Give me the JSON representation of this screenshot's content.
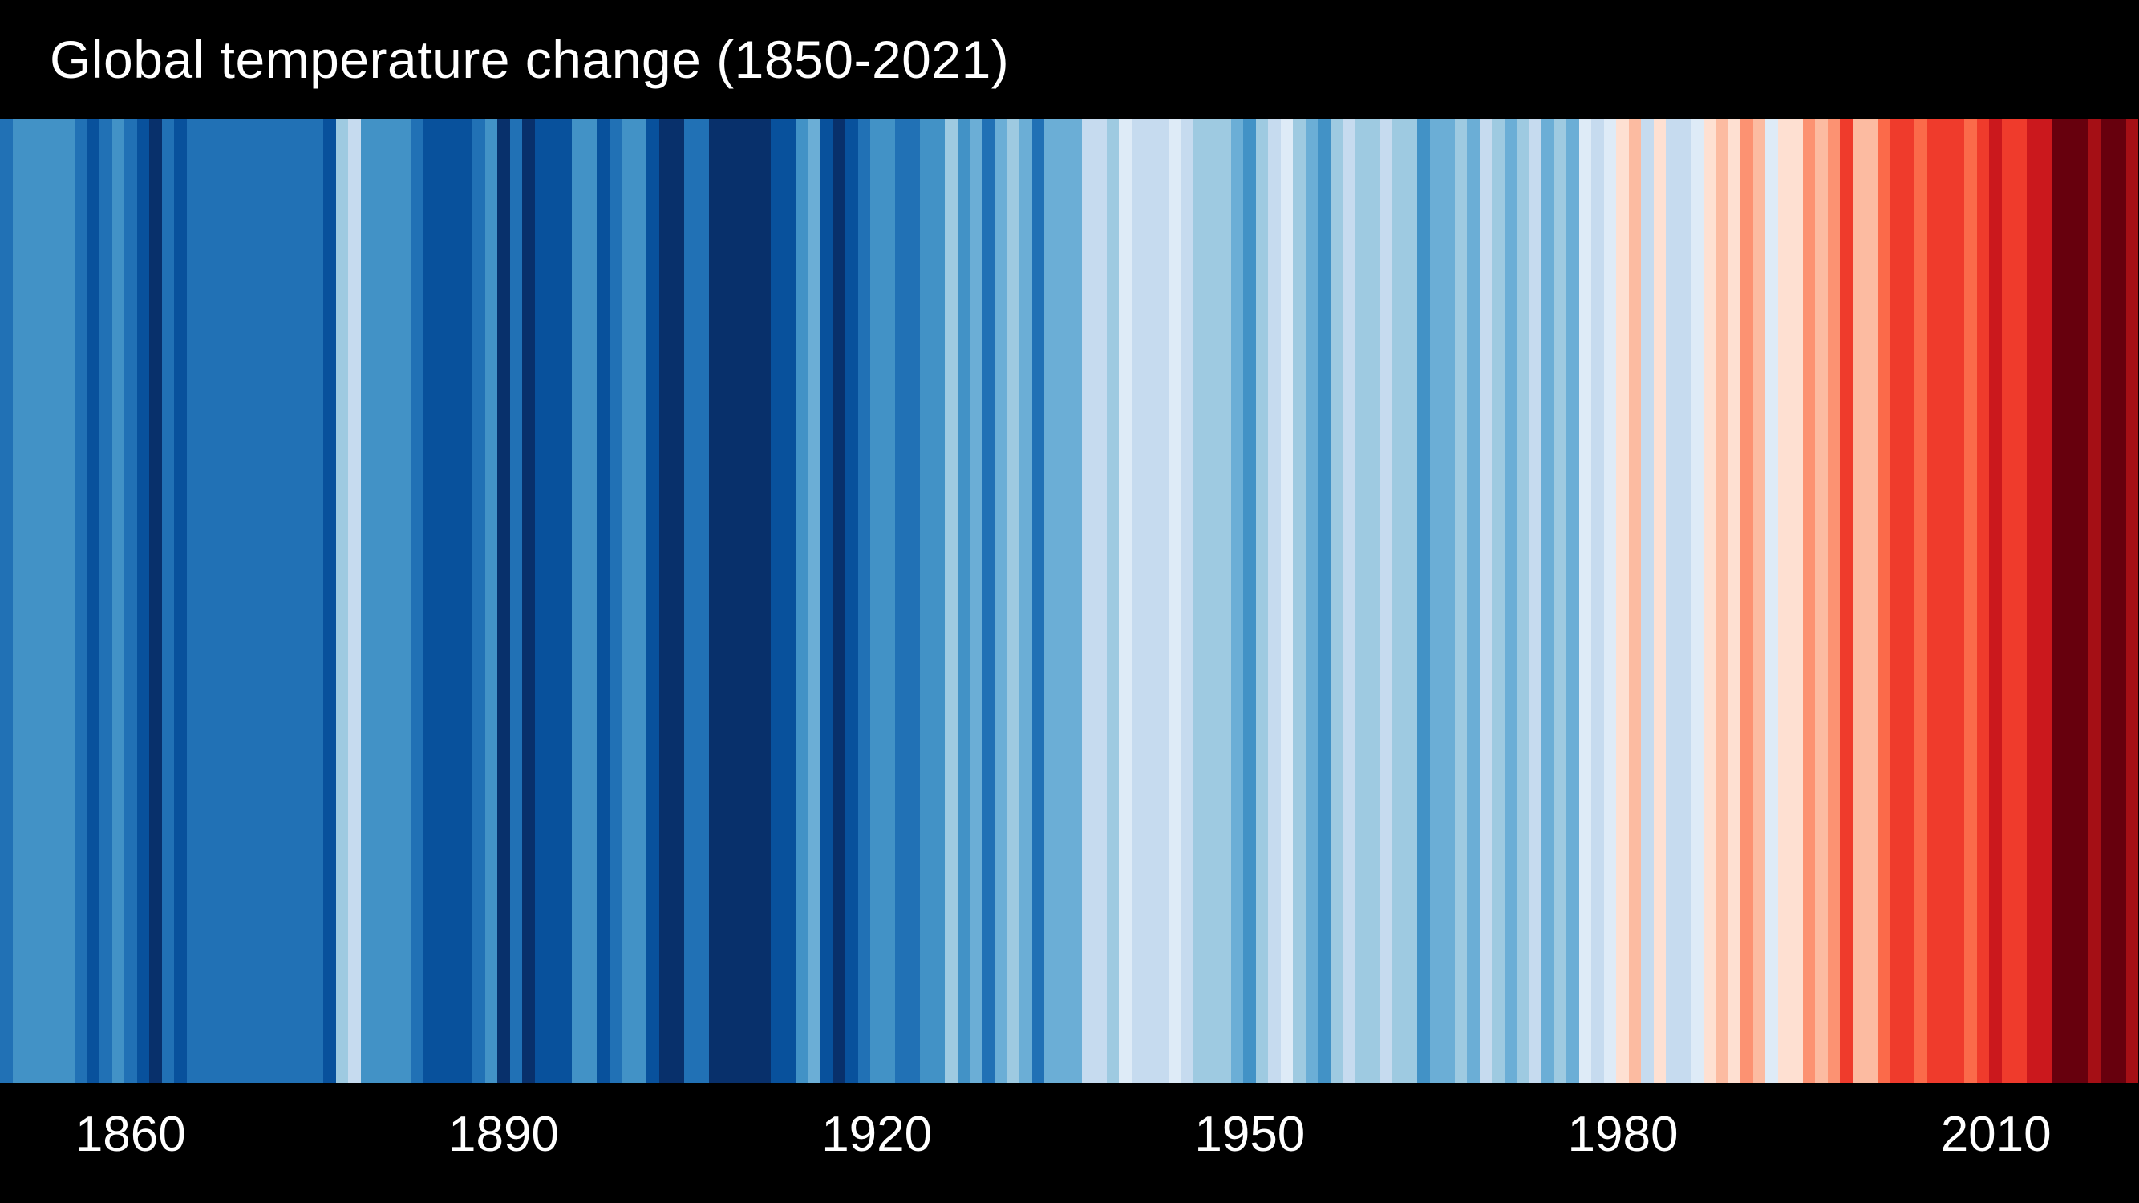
{
  "title": "Global temperature change (1850-2021)",
  "colors": {
    "background": "#000000",
    "title_text": "#ffffff",
    "tick_text": "#ffffff"
  },
  "chart_data": {
    "type": "heatmap",
    "subtype": "warming-stripes",
    "title": "Global temperature change (1850-2021)",
    "x_axis": "year",
    "start_year": 1850,
    "end_year": 2021,
    "x_ticks": [
      1860,
      1890,
      1920,
      1950,
      1980,
      2010
    ],
    "legend": "none",
    "palette_cold_to_hot": [
      "#08306b",
      "#08519c",
      "#2171b5",
      "#4292c6",
      "#6baed6",
      "#9ecae1",
      "#c6dbef",
      "#deebf7",
      "#fee0d2",
      "#fcbba1",
      "#fc9272",
      "#fb6a4a",
      "#ef3b2c",
      "#cb181d",
      "#a50f15",
      "#67000d"
    ],
    "stripe_colors": [
      "#2171b5",
      "#4292c6",
      "#4292c6",
      "#4292c6",
      "#4292c6",
      "#4292c6",
      "#2171b5",
      "#08519c",
      "#2171b5",
      "#4292c6",
      "#2171b5",
      "#08519c",
      "#08306b",
      "#2171b5",
      "#08519c",
      "#2171b5",
      "#2171b5",
      "#2171b5",
      "#2171b5",
      "#2171b5",
      "#2171b5",
      "#2171b5",
      "#2171b5",
      "#2171b5",
      "#2171b5",
      "#2171b5",
      "#08519c",
      "#9ecae1",
      "#c6dbef",
      "#4292c6",
      "#4292c6",
      "#4292c6",
      "#4292c6",
      "#2171b5",
      "#08519c",
      "#08519c",
      "#08519c",
      "#08519c",
      "#2171b5",
      "#4292c6",
      "#08306b",
      "#2171b5",
      "#08306b",
      "#08519c",
      "#08519c",
      "#08519c",
      "#4292c6",
      "#4292c6",
      "#08519c",
      "#2171b5",
      "#4292c6",
      "#4292c6",
      "#08519c",
      "#08306b",
      "#08306b",
      "#2171b5",
      "#2171b5",
      "#08306b",
      "#08306b",
      "#08306b",
      "#08306b",
      "#08306b",
      "#08519c",
      "#08519c",
      "#4292c6",
      "#6baed6",
      "#08519c",
      "#08306b",
      "#08519c",
      "#2171b5",
      "#4292c6",
      "#4292c6",
      "#2171b5",
      "#2171b5",
      "#4292c6",
      "#4292c6",
      "#9ecae1",
      "#4292c6",
      "#6baed6",
      "#2171b5",
      "#6baed6",
      "#9ecae1",
      "#6baed6",
      "#2171b5",
      "#6baed6",
      "#6baed6",
      "#6baed6",
      "#c6dbef",
      "#c6dbef",
      "#9ecae1",
      "#deebf7",
      "#c6dbef",
      "#c6dbef",
      "#c6dbef",
      "#deebf7",
      "#c6dbef",
      "#9ecae1",
      "#9ecae1",
      "#9ecae1",
      "#6baed6",
      "#4292c6",
      "#9ecae1",
      "#c6dbef",
      "#deebf7",
      "#9ecae1",
      "#6baed6",
      "#4292c6",
      "#9ecae1",
      "#c6dbef",
      "#9ecae1",
      "#9ecae1",
      "#c6dbef",
      "#9ecae1",
      "#9ecae1",
      "#4292c6",
      "#6baed6",
      "#6baed6",
      "#9ecae1",
      "#6baed6",
      "#c6dbef",
      "#9ecae1",
      "#6baed6",
      "#9ecae1",
      "#c6dbef",
      "#6baed6",
      "#9ecae1",
      "#6baed6",
      "#deebf7",
      "#c6dbef",
      "#deebf7",
      "#fee0d2",
      "#fcbba1",
      "#c6dbef",
      "#fee0d2",
      "#c6dbef",
      "#c6dbef",
      "#deebf7",
      "#fee0d2",
      "#fcbba1",
      "#fee0d2",
      "#fc9272",
      "#fcbba1",
      "#deebf7",
      "#fee0d2",
      "#fee0d2",
      "#fc9272",
      "#fcbba1",
      "#fc9272",
      "#ef3b2c",
      "#fcbba1",
      "#fcbba1",
      "#fb6a4a",
      "#ef3b2c",
      "#ef3b2c",
      "#fb6a4a",
      "#ef3b2c",
      "#ef3b2c",
      "#ef3b2c",
      "#fb6a4a",
      "#ef3b2c",
      "#cb181d",
      "#ef3b2c",
      "#ef3b2c",
      "#cb181d",
      "#cb181d",
      "#67000d",
      "#67000d",
      "#67000d",
      "#a50f15",
      "#67000d",
      "#67000d",
      "#a50f15"
    ]
  }
}
